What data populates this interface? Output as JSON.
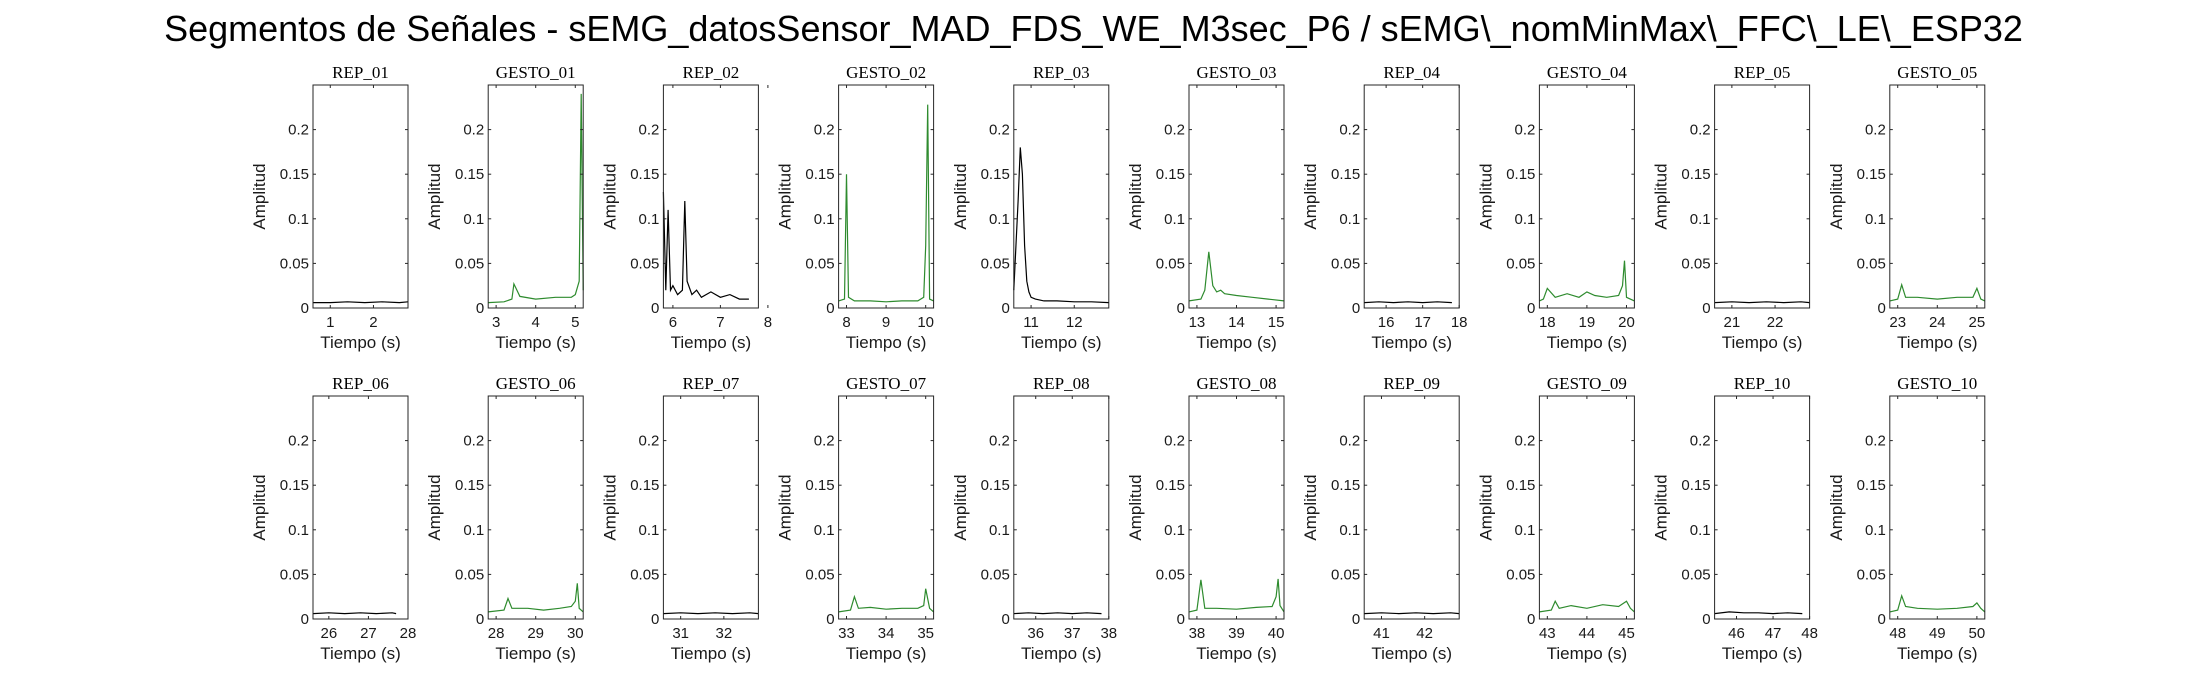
{
  "figure": {
    "title": "Segmentos de Señales - sEMG_datosSensor_MAD_FDS_WE_M3sec_P6 / sEMG\\_nomMinMax\\_FFC\\_LE\\_ESP32"
  },
  "colors": {
    "rep": "#000000",
    "gesto": "#2e8b2e",
    "axis": "#262626"
  },
  "chart_data": [
    {
      "type": "line",
      "title": "REP_01",
      "xlabel": "Tiempo (s)",
      "ylabel": "Amplitud",
      "xlim": [
        0.6,
        2.8
      ],
      "ylim": [
        0,
        0.25
      ],
      "xticks": [
        1,
        2
      ],
      "yticks": [
        0,
        0.05,
        0.1,
        0.15,
        0.2
      ],
      "yticklabels": [
        "0",
        "0.05",
        "0.1",
        "0.15",
        "0.2"
      ],
      "color": "rep",
      "x": [
        0.6,
        1.0,
        1.4,
        1.8,
        2.2,
        2.6,
        2.8
      ],
      "y": [
        0.006,
        0.006,
        0.007,
        0.006,
        0.007,
        0.006,
        0.007
      ]
    },
    {
      "type": "line",
      "title": "GESTO_01",
      "xlabel": "Tiempo (s)",
      "ylabel": "Amplitud",
      "xlim": [
        2.8,
        5.2
      ],
      "ylim": [
        0,
        0.25
      ],
      "xticks": [
        3,
        4,
        5
      ],
      "yticks": [
        0,
        0.05,
        0.1,
        0.15,
        0.2
      ],
      "yticklabels": [
        "0",
        "0.05",
        "0.1",
        "0.15",
        "0.2"
      ],
      "color": "gesto",
      "x": [
        2.8,
        3.2,
        3.4,
        3.45,
        3.6,
        4.0,
        4.5,
        4.9,
        5.0,
        5.1,
        5.15,
        5.2
      ],
      "y": [
        0.006,
        0.007,
        0.01,
        0.027,
        0.013,
        0.01,
        0.012,
        0.012,
        0.015,
        0.03,
        0.24,
        0.02
      ]
    },
    {
      "type": "line",
      "title": "REP_02",
      "xlabel": "Tiempo (s)",
      "ylabel": "Amplitud",
      "xlim": [
        5.8,
        7.8
      ],
      "ylim": [
        0,
        0.25
      ],
      "xticks": [
        6,
        7,
        8
      ],
      "yticks": [
        0,
        0.05,
        0.1,
        0.15,
        0.2
      ],
      "yticklabels": [
        "0",
        "0.05",
        "0.1",
        "0.15",
        "0.2"
      ],
      "color": "rep",
      "x": [
        5.8,
        5.85,
        5.9,
        5.95,
        6.0,
        6.1,
        6.2,
        6.25,
        6.3,
        6.4,
        6.5,
        6.6,
        6.8,
        7.0,
        7.2,
        7.4,
        7.6
      ],
      "y": [
        0.13,
        0.02,
        0.11,
        0.02,
        0.025,
        0.015,
        0.02,
        0.12,
        0.03,
        0.015,
        0.02,
        0.012,
        0.018,
        0.012,
        0.015,
        0.01,
        0.01
      ]
    },
    {
      "type": "line",
      "title": "GESTO_02",
      "xlabel": "Tiempo (s)",
      "ylabel": "Amplitud",
      "xlim": [
        7.8,
        10.2
      ],
      "ylim": [
        0,
        0.25
      ],
      "xticks": [
        8,
        9,
        10
      ],
      "yticks": [
        0,
        0.05,
        0.1,
        0.15,
        0.2
      ],
      "yticklabels": [
        "0",
        "0.05",
        "0.1",
        "0.15",
        "0.2"
      ],
      "color": "gesto",
      "x": [
        7.8,
        7.95,
        8.0,
        8.05,
        8.2,
        8.6,
        9.0,
        9.4,
        9.8,
        9.95,
        10.0,
        10.05,
        10.1,
        10.2
      ],
      "y": [
        0.008,
        0.01,
        0.15,
        0.012,
        0.008,
        0.008,
        0.007,
        0.008,
        0.008,
        0.012,
        0.07,
        0.228,
        0.01,
        0.008
      ]
    },
    {
      "type": "line",
      "title": "REP_03",
      "xlabel": "Tiempo (s)",
      "ylabel": "Amplitud",
      "xlim": [
        10.6,
        12.8
      ],
      "ylim": [
        0,
        0.25
      ],
      "xticks": [
        11,
        12
      ],
      "yticks": [
        0,
        0.05,
        0.1,
        0.15,
        0.2
      ],
      "yticklabels": [
        "0",
        "0.05",
        "0.1",
        "0.15",
        "0.2"
      ],
      "color": "rep",
      "x": [
        10.6,
        10.7,
        10.75,
        10.8,
        10.85,
        10.9,
        10.95,
        11.0,
        11.1,
        11.3,
        11.6,
        12.0,
        12.4,
        12.8
      ],
      "y": [
        0.02,
        0.12,
        0.18,
        0.15,
        0.07,
        0.03,
        0.018,
        0.012,
        0.01,
        0.008,
        0.008,
        0.007,
        0.007,
        0.006
      ]
    },
    {
      "type": "line",
      "title": "GESTO_03",
      "xlabel": "Tiempo (s)",
      "ylabel": "Amplitud",
      "xlim": [
        12.8,
        15.2
      ],
      "ylim": [
        0,
        0.25
      ],
      "xticks": [
        13,
        14,
        15
      ],
      "yticks": [
        0,
        0.05,
        0.1,
        0.15,
        0.2
      ],
      "yticklabels": [
        "0",
        "0.05",
        "0.1",
        "0.15",
        "0.2"
      ],
      "color": "gesto",
      "x": [
        12.8,
        13.1,
        13.2,
        13.3,
        13.4,
        13.5,
        13.6,
        13.7,
        14.0,
        14.4,
        14.8,
        15.2
      ],
      "y": [
        0.008,
        0.01,
        0.02,
        0.063,
        0.025,
        0.018,
        0.02,
        0.016,
        0.014,
        0.012,
        0.01,
        0.008
      ]
    },
    {
      "type": "line",
      "title": "REP_04",
      "xlabel": "Tiempo (s)",
      "ylabel": "Amplitud",
      "xlim": [
        15.4,
        18.0
      ],
      "ylim": [
        0,
        0.25
      ],
      "xticks": [
        16,
        17,
        18
      ],
      "yticks": [
        0,
        0.05,
        0.1,
        0.15,
        0.2
      ],
      "yticklabels": [
        "0",
        "0.05",
        "0.1",
        "0.15",
        "0.2"
      ],
      "color": "rep",
      "x": [
        15.4,
        15.8,
        16.2,
        16.6,
        17.0,
        17.4,
        17.8
      ],
      "y": [
        0.006,
        0.007,
        0.006,
        0.007,
        0.006,
        0.007,
        0.006
      ]
    },
    {
      "type": "line",
      "title": "GESTO_04",
      "xlabel": "Tiempo (s)",
      "ylabel": "Amplitud",
      "xlim": [
        17.8,
        20.2
      ],
      "ylim": [
        0,
        0.25
      ],
      "xticks": [
        18,
        19,
        20
      ],
      "yticks": [
        0,
        0.05,
        0.1,
        0.15,
        0.2
      ],
      "yticklabels": [
        "0",
        "0.05",
        "0.1",
        "0.15",
        "0.2"
      ],
      "color": "gesto",
      "x": [
        17.8,
        17.9,
        18.0,
        18.2,
        18.5,
        18.8,
        19.0,
        19.2,
        19.5,
        19.8,
        19.9,
        19.95,
        20.0,
        20.2
      ],
      "y": [
        0.008,
        0.01,
        0.022,
        0.012,
        0.016,
        0.012,
        0.018,
        0.014,
        0.012,
        0.014,
        0.025,
        0.053,
        0.012,
        0.008
      ]
    },
    {
      "type": "line",
      "title": "REP_05",
      "xlabel": "Tiempo (s)",
      "ylabel": "Amplitud",
      "xlim": [
        20.6,
        22.8
      ],
      "ylim": [
        0,
        0.25
      ],
      "xticks": [
        21,
        22
      ],
      "yticks": [
        0,
        0.05,
        0.1,
        0.15,
        0.2
      ],
      "yticklabels": [
        "0",
        "0.05",
        "0.1",
        "0.15",
        "0.2"
      ],
      "color": "rep",
      "x": [
        20.6,
        21.0,
        21.4,
        21.8,
        22.2,
        22.6,
        22.8
      ],
      "y": [
        0.006,
        0.007,
        0.006,
        0.007,
        0.006,
        0.007,
        0.006
      ]
    },
    {
      "type": "line",
      "title": "GESTO_05",
      "xlabel": "Tiempo (s)",
      "ylabel": "Amplitud",
      "xlim": [
        22.8,
        25.2
      ],
      "ylim": [
        0,
        0.25
      ],
      "xticks": [
        23,
        24,
        25
      ],
      "yticks": [
        0,
        0.05,
        0.1,
        0.15,
        0.2
      ],
      "yticklabels": [
        "0",
        "0.05",
        "0.1",
        "0.15",
        "0.2"
      ],
      "color": "gesto",
      "x": [
        22.8,
        23.0,
        23.1,
        23.2,
        23.5,
        24.0,
        24.5,
        24.9,
        25.0,
        25.1,
        25.2
      ],
      "y": [
        0.008,
        0.01,
        0.026,
        0.012,
        0.012,
        0.01,
        0.012,
        0.012,
        0.022,
        0.01,
        0.008
      ]
    },
    {
      "type": "line",
      "title": "REP_06",
      "xlabel": "Tiempo (s)",
      "ylabel": "Amplitud",
      "xlim": [
        25.6,
        28.0
      ],
      "ylim": [
        0,
        0.25
      ],
      "xticks": [
        26,
        27,
        28
      ],
      "yticks": [
        0,
        0.05,
        0.1,
        0.15,
        0.2
      ],
      "yticklabels": [
        "0",
        "0.05",
        "0.1",
        "0.15",
        "0.2"
      ],
      "color": "rep",
      "x": [
        25.6,
        26.0,
        26.4,
        26.8,
        27.2,
        27.6,
        27.7
      ],
      "y": [
        0.006,
        0.007,
        0.006,
        0.007,
        0.006,
        0.007,
        0.006
      ]
    },
    {
      "type": "line",
      "title": "GESTO_06",
      "xlabel": "Tiempo (s)",
      "ylabel": "Amplitud",
      "xlim": [
        27.8,
        30.2
      ],
      "ylim": [
        0,
        0.25
      ],
      "xticks": [
        28,
        29,
        30
      ],
      "yticks": [
        0,
        0.05,
        0.1,
        0.15,
        0.2
      ],
      "yticklabels": [
        "0",
        "0.05",
        "0.1",
        "0.15",
        "0.2"
      ],
      "color": "gesto",
      "x": [
        27.8,
        28.2,
        28.3,
        28.4,
        28.8,
        29.2,
        29.6,
        29.9,
        30.0,
        30.05,
        30.1,
        30.2
      ],
      "y": [
        0.008,
        0.01,
        0.023,
        0.012,
        0.012,
        0.01,
        0.012,
        0.014,
        0.02,
        0.04,
        0.012,
        0.008
      ]
    },
    {
      "type": "line",
      "title": "REP_07",
      "xlabel": "Tiempo (s)",
      "ylabel": "Amplitud",
      "xlim": [
        30.6,
        32.8
      ],
      "ylim": [
        0,
        0.25
      ],
      "xticks": [
        31,
        32
      ],
      "yticks": [
        0,
        0.05,
        0.1,
        0.15,
        0.2
      ],
      "yticklabels": [
        "0",
        "0.05",
        "0.1",
        "0.15",
        "0.2"
      ],
      "color": "rep",
      "x": [
        30.6,
        31.0,
        31.4,
        31.8,
        32.2,
        32.6,
        32.8
      ],
      "y": [
        0.006,
        0.007,
        0.006,
        0.007,
        0.006,
        0.007,
        0.006
      ]
    },
    {
      "type": "line",
      "title": "GESTO_07",
      "xlabel": "Tiempo (s)",
      "ylabel": "Amplitud",
      "xlim": [
        32.8,
        35.2
      ],
      "ylim": [
        0,
        0.25
      ],
      "xticks": [
        33,
        34,
        35
      ],
      "yticks": [
        0,
        0.05,
        0.1,
        0.15,
        0.2
      ],
      "yticklabels": [
        "0",
        "0.05",
        "0.1",
        "0.15",
        "0.2"
      ],
      "color": "gesto",
      "x": [
        32.8,
        33.1,
        33.2,
        33.3,
        33.6,
        34.0,
        34.4,
        34.8,
        34.95,
        35.0,
        35.1,
        35.2
      ],
      "y": [
        0.008,
        0.01,
        0.025,
        0.012,
        0.013,
        0.011,
        0.012,
        0.012,
        0.015,
        0.034,
        0.012,
        0.008
      ]
    },
    {
      "type": "line",
      "title": "REP_08",
      "xlabel": "Tiempo (s)",
      "ylabel": "Amplitud",
      "xlim": [
        35.4,
        38.0
      ],
      "ylim": [
        0,
        0.25
      ],
      "xticks": [
        36,
        37,
        38
      ],
      "yticks": [
        0,
        0.05,
        0.1,
        0.15,
        0.2
      ],
      "yticklabels": [
        "0",
        "0.05",
        "0.1",
        "0.15",
        "0.2"
      ],
      "color": "rep",
      "x": [
        35.4,
        35.8,
        36.2,
        36.6,
        37.0,
        37.4,
        37.8
      ],
      "y": [
        0.006,
        0.007,
        0.006,
        0.007,
        0.006,
        0.007,
        0.006
      ]
    },
    {
      "type": "line",
      "title": "GESTO_08",
      "xlabel": "Tiempo (s)",
      "ylabel": "Amplitud",
      "xlim": [
        37.8,
        40.2
      ],
      "ylim": [
        0,
        0.25
      ],
      "xticks": [
        38,
        39,
        40
      ],
      "yticks": [
        0,
        0.05,
        0.1,
        0.15,
        0.2
      ],
      "yticklabels": [
        "0",
        "0.05",
        "0.1",
        "0.15",
        "0.2"
      ],
      "color": "gesto",
      "x": [
        37.8,
        38.0,
        38.1,
        38.2,
        38.5,
        39.0,
        39.5,
        39.9,
        40.0,
        40.05,
        40.1,
        40.2
      ],
      "y": [
        0.008,
        0.01,
        0.044,
        0.012,
        0.012,
        0.011,
        0.013,
        0.014,
        0.025,
        0.045,
        0.015,
        0.008
      ]
    },
    {
      "type": "line",
      "title": "REP_09",
      "xlabel": "Tiempo (s)",
      "ylabel": "Amplitud",
      "xlim": [
        40.6,
        42.8
      ],
      "ylim": [
        0,
        0.25
      ],
      "xticks": [
        41,
        42
      ],
      "yticks": [
        0,
        0.05,
        0.1,
        0.15,
        0.2
      ],
      "yticklabels": [
        "0",
        "0.05",
        "0.1",
        "0.15",
        "0.2"
      ],
      "color": "rep",
      "x": [
        40.6,
        41.0,
        41.4,
        41.8,
        42.2,
        42.6,
        42.8
      ],
      "y": [
        0.006,
        0.007,
        0.006,
        0.007,
        0.006,
        0.007,
        0.006
      ]
    },
    {
      "type": "line",
      "title": "GESTO_09",
      "xlabel": "Tiempo (s)",
      "ylabel": "Amplitud",
      "xlim": [
        42.8,
        45.2
      ],
      "ylim": [
        0,
        0.25
      ],
      "xticks": [
        43,
        44,
        45
      ],
      "yticks": [
        0,
        0.05,
        0.1,
        0.15,
        0.2
      ],
      "yticklabels": [
        "0",
        "0.05",
        "0.1",
        "0.15",
        "0.2"
      ],
      "color": "gesto",
      "x": [
        42.8,
        43.1,
        43.2,
        43.3,
        43.6,
        44.0,
        44.4,
        44.8,
        45.0,
        45.1,
        45.2
      ],
      "y": [
        0.008,
        0.01,
        0.02,
        0.012,
        0.015,
        0.012,
        0.016,
        0.014,
        0.02,
        0.012,
        0.008
      ]
    },
    {
      "type": "line",
      "title": "REP_10",
      "xlabel": "Tiempo (s)",
      "ylabel": "Amplitud",
      "xlim": [
        45.4,
        48.0
      ],
      "ylim": [
        0,
        0.25
      ],
      "xticks": [
        46,
        47,
        48
      ],
      "yticks": [
        0,
        0.05,
        0.1,
        0.15,
        0.2
      ],
      "yticklabels": [
        "0",
        "0.05",
        "0.1",
        "0.15",
        "0.2"
      ],
      "color": "rep",
      "x": [
        45.4,
        45.8,
        46.2,
        46.6,
        47.0,
        47.4,
        47.8
      ],
      "y": [
        0.006,
        0.008,
        0.007,
        0.007,
        0.006,
        0.007,
        0.006
      ]
    },
    {
      "type": "line",
      "title": "GESTO_10",
      "xlabel": "Tiempo (s)",
      "ylabel": "Amplitud",
      "xlim": [
        47.8,
        50.2
      ],
      "ylim": [
        0,
        0.25
      ],
      "xticks": [
        48,
        49,
        50
      ],
      "yticks": [
        0,
        0.05,
        0.1,
        0.15,
        0.2
      ],
      "yticklabels": [
        "0",
        "0.05",
        "0.1",
        "0.15",
        "0.2"
      ],
      "color": "gesto",
      "x": [
        47.8,
        48.0,
        48.1,
        48.2,
        48.5,
        49.0,
        49.5,
        49.9,
        50.0,
        50.1,
        50.2
      ],
      "y": [
        0.008,
        0.01,
        0.026,
        0.014,
        0.012,
        0.011,
        0.012,
        0.014,
        0.018,
        0.012,
        0.008
      ]
    }
  ]
}
